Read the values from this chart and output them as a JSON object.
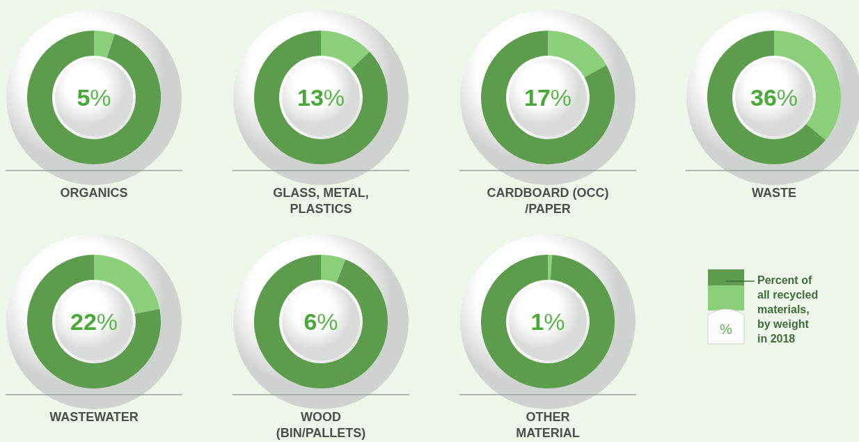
{
  "chart_data": [
    {
      "type": "donut",
      "title": "ORGANICS",
      "categories": [
        null,
        null
      ],
      "values": [
        5,
        95
      ],
      "colors": [
        "#8ccf7a",
        "#5c9c4c"
      ],
      "annotations": [
        "5%"
      ]
    },
    {
      "type": "donut",
      "title": "GLASS, METAL,\nPLASTICS",
      "categories": [
        null,
        null
      ],
      "values": [
        13,
        87
      ],
      "colors": [
        "#8ccf7a",
        "#5c9c4c"
      ],
      "annotations": [
        "13%"
      ]
    },
    {
      "type": "donut",
      "title": "CARDBOARD (OCC)\n/PAPER",
      "categories": [
        null,
        null
      ],
      "values": [
        17,
        83
      ],
      "colors": [
        "#8ccf7a",
        "#5c9c4c"
      ],
      "annotations": [
        "17%"
      ]
    },
    {
      "type": "donut",
      "title": "WASTE",
      "categories": [
        null,
        null
      ],
      "values": [
        36,
        64
      ],
      "colors": [
        "#8ccf7a",
        "#5c9c4c"
      ],
      "annotations": [
        "36%"
      ]
    },
    {
      "type": "donut",
      "title": "WASTEWATER",
      "categories": [
        null,
        null
      ],
      "values": [
        22,
        78
      ],
      "colors": [
        "#8ccf7a",
        "#5c9c4c"
      ],
      "annotations": [
        "22%"
      ]
    },
    {
      "type": "donut",
      "title": "WOOD\n(BIN/PALLETS)",
      "categories": [
        null,
        null
      ],
      "values": [
        6,
        94
      ],
      "colors": [
        "#8ccf7a",
        "#5c9c4c"
      ],
      "annotations": [
        "6%"
      ]
    },
    {
      "type": "donut",
      "title": "OTHER\nMATERIAL",
      "categories": [
        null,
        null
      ],
      "values": [
        1,
        99
      ],
      "colors": [
        "#8ccf7a",
        "#5c9c4c"
      ],
      "annotations": [
        "1%",
        "Percent of\nall recycled\nmaterials,\nby weight\nin 2018",
        "%"
      ]
    }
  ]
}
